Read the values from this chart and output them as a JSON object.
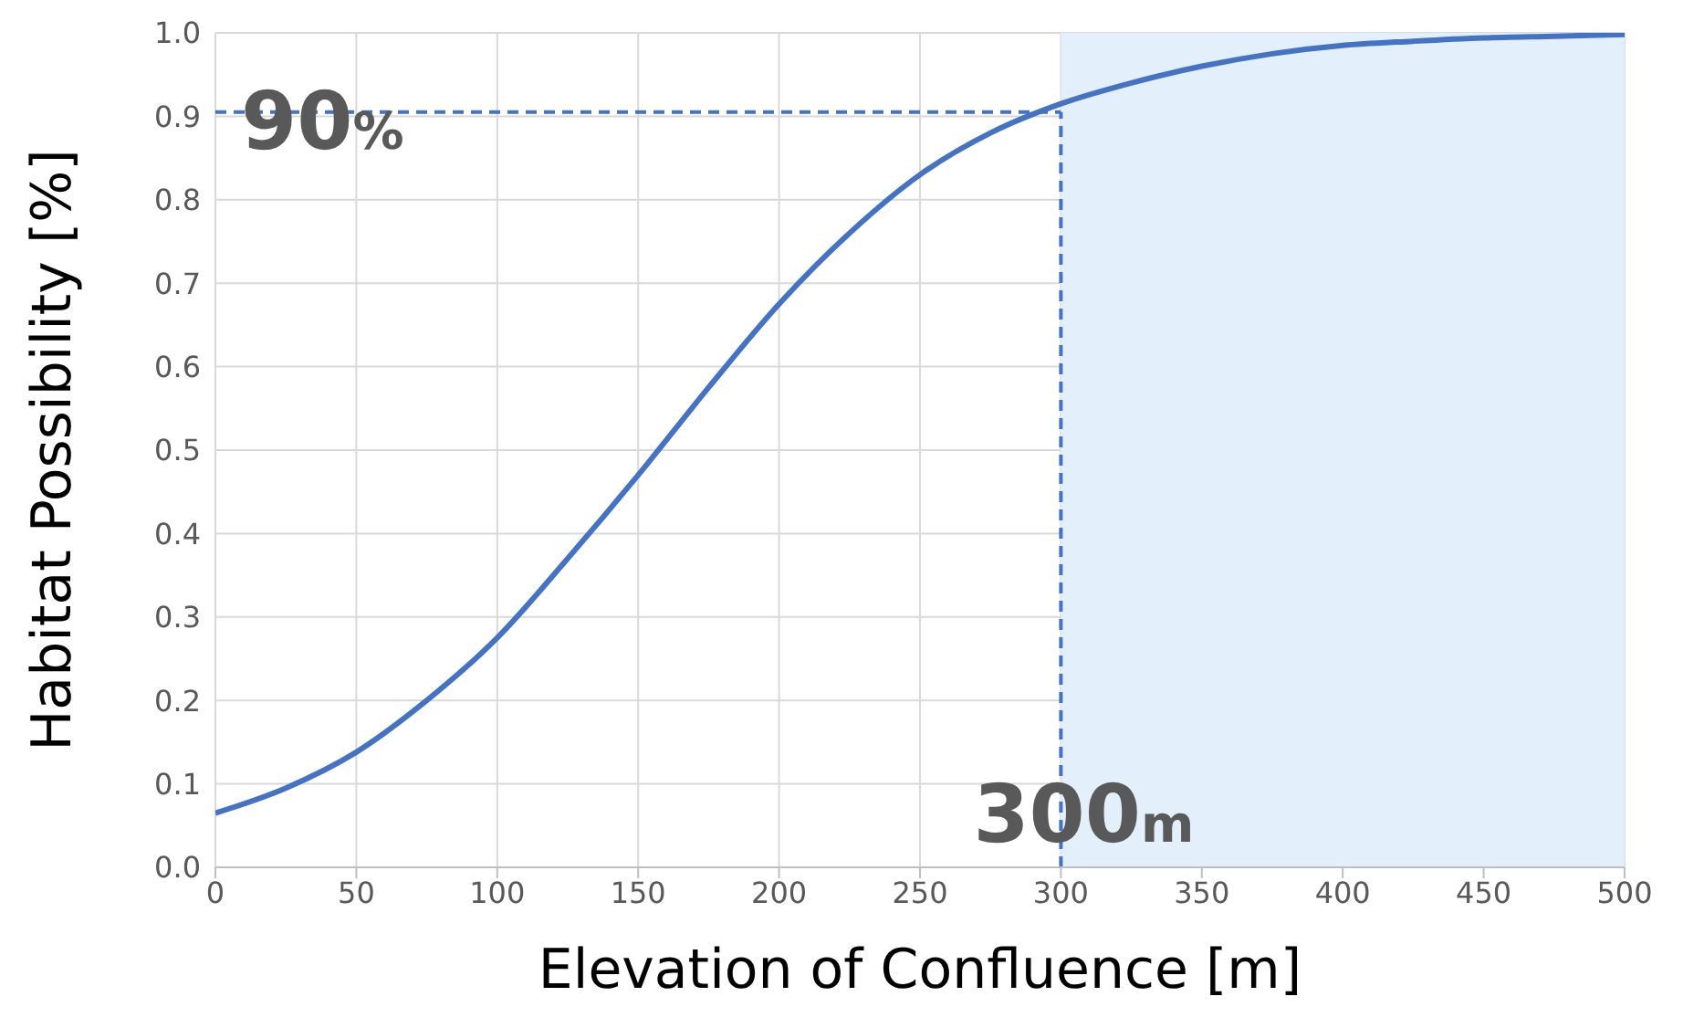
{
  "chart_data": {
    "type": "line",
    "xlabel": "Elevation of Confluence [m]",
    "ylabel": "Habitat Possibility [%]",
    "x": [
      0,
      25,
      50,
      75,
      100,
      125,
      150,
      175,
      200,
      225,
      250,
      275,
      300,
      325,
      350,
      375,
      400,
      425,
      450,
      475,
      500
    ],
    "series": [
      {
        "color": "#4472c4",
        "values": [
          0.065,
          0.095,
          0.138,
          0.2,
          0.275,
          0.37,
          0.47,
          0.575,
          0.675,
          0.76,
          0.83,
          0.88,
          0.915,
          0.94,
          0.96,
          0.975,
          0.985,
          0.99,
          0.994,
          0.996,
          0.998
        ]
      }
    ],
    "xlim": [
      0,
      500
    ],
    "xticks": [
      0,
      50,
      100,
      150,
      200,
      250,
      300,
      350,
      400,
      450,
      500
    ],
    "ylim": [
      0,
      1
    ],
    "yticks": [
      {
        "value": 0,
        "label": "0.0"
      },
      {
        "value": 0.1,
        "label": "0.1"
      },
      {
        "value": 0.2,
        "label": "0.2"
      },
      {
        "value": 0.3,
        "label": "0.3"
      },
      {
        "value": 0.4,
        "label": "0.4"
      },
      {
        "value": 0.5,
        "label": "0.5"
      },
      {
        "value": 0.6,
        "label": "0.6"
      },
      {
        "value": 0.7,
        "label": "0.7"
      },
      {
        "value": 0.8,
        "label": "0.8"
      },
      {
        "value": 0.9,
        "label": "0.9"
      },
      {
        "value": 1,
        "label": "1.0"
      }
    ],
    "ref_lines": [
      {
        "axis": "y",
        "value": 0.905,
        "label": "90%",
        "color": "#4472c4",
        "line_style": "dashed"
      },
      {
        "axis": "x",
        "value": 300,
        "label": "300m",
        "color": "#4472c4",
        "line_style": "dashed"
      }
    ],
    "bands": [
      {
        "axis": "x",
        "from": 300,
        "to": 500,
        "color": "#e3f0fb"
      }
    ],
    "grid": true,
    "marker": "none",
    "line_style": "solid"
  }
}
